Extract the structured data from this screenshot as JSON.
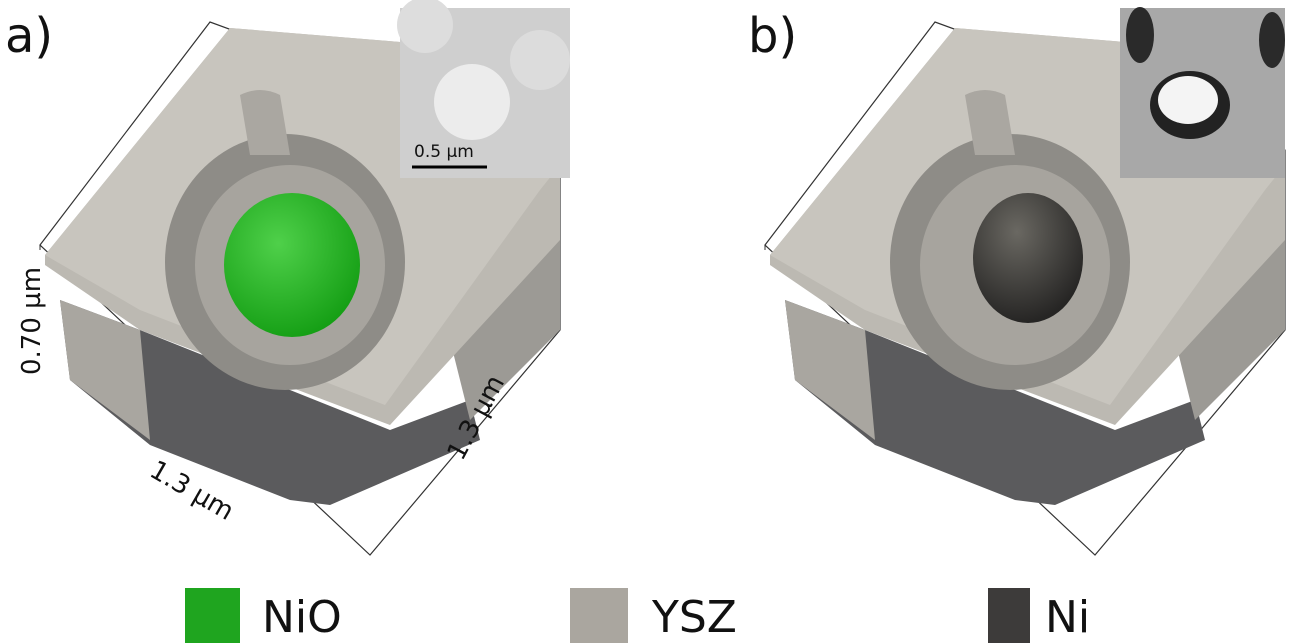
{
  "panels": [
    {
      "label": "a)",
      "inset_scale": "0.5 µm",
      "dimensions": [
        "0.70 µm",
        "1.3 µm",
        "1.3 µm"
      ]
    },
    {
      "label": "b)"
    }
  ],
  "legend": [
    {
      "label": "NiO"
    },
    {
      "label": "YSZ"
    },
    {
      "label": "Ni"
    }
  ]
}
